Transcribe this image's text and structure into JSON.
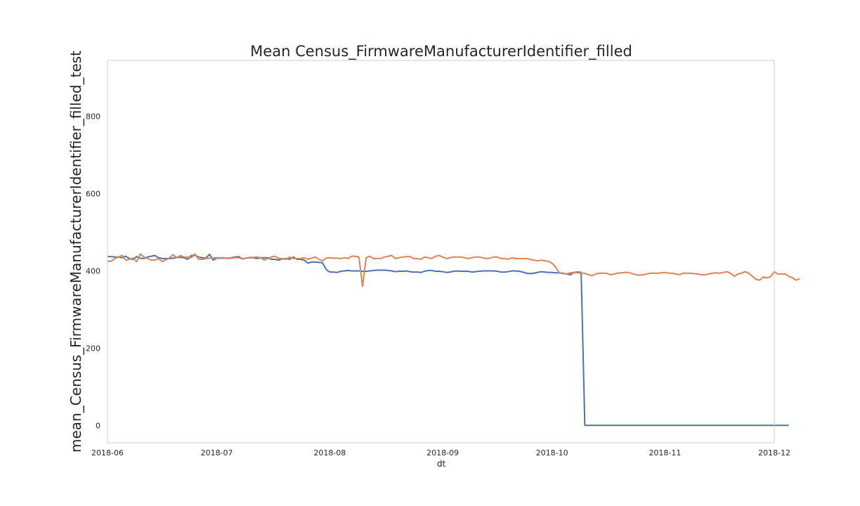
{
  "chart_data": {
    "type": "line",
    "title": "Mean Census_FirmwareManufacturerIdentifier_filled",
    "xlabel": "dt",
    "ylabel": "mean_Census_FirmwareManufacturerIdentifier_filled_test",
    "x_ticks": [
      "2018-06",
      "2018-07",
      "2018-08",
      "2018-09",
      "2018-10",
      "2018-11",
      "2018-12"
    ],
    "y_ticks": [
      0,
      200,
      400,
      600,
      800
    ],
    "xlim": [
      "2018-06-01",
      "2018-12-01"
    ],
    "ylim": [
      -45,
      945
    ],
    "grid": false,
    "series": [
      {
        "color": "#4c72b0",
        "x_start": "2018-06-01",
        "x_step_days": 1,
        "values": [
          437,
          437,
          436,
          436,
          434,
          438,
          432,
          430,
          437,
          433,
          432,
          436,
          438,
          440,
          434,
          432,
          432,
          432,
          433,
          435,
          435,
          434,
          430,
          440,
          440,
          436,
          434,
          433,
          443,
          428,
          433,
          433,
          433,
          433,
          434,
          436,
          437,
          431,
          433,
          434,
          434,
          432,
          434,
          434,
          434,
          430,
          430,
          428,
          431,
          432,
          430,
          436,
          430,
          430,
          428,
          420,
          423,
          423,
          422,
          421,
          404,
          397,
          397,
          396,
          399,
          400,
          401,
          400,
          400,
          400,
          399,
          399,
          400,
          401,
          402,
          402,
          402,
          401,
          400,
          398,
          399,
          399,
          400,
          398,
          397,
          397,
          396,
          399,
          401,
          401,
          399,
          399,
          398,
          396,
          397,
          399,
          400,
          399,
          399,
          399,
          397,
          398,
          399,
          400,
          400,
          400,
          400,
          399,
          397,
          397,
          398,
          400,
          400,
          399,
          397,
          394,
          393,
          394,
          396,
          398,
          397,
          396,
          396,
          395,
          395,
          394,
          392,
          390,
          396,
          397,
          396,
          0,
          0,
          0,
          0,
          0,
          0,
          0,
          0,
          0,
          0,
          0,
          0,
          0,
          0,
          0,
          0,
          0,
          0,
          0,
          0,
          0,
          0,
          0,
          0,
          0,
          0,
          0,
          0,
          0,
          0,
          0,
          0,
          0,
          0,
          0,
          0,
          0,
          0,
          0,
          0,
          0,
          0,
          0,
          0,
          0,
          0,
          0,
          0,
          0,
          0,
          0,
          0,
          0,
          0,
          0,
          0,
          0
        ]
      },
      {
        "color": "#dd8452",
        "x_start": "2018-06-01",
        "x_step_days": 1,
        "values": [
          425,
          425,
          432,
          436,
          440,
          428,
          430,
          433,
          424,
          444,
          436,
          432,
          428,
          428,
          432,
          424,
          428,
          434,
          442,
          434,
          440,
          436,
          436,
          434,
          444,
          430,
          430,
          432,
          433,
          434,
          434,
          434,
          434,
          432,
          433,
          434,
          434,
          432,
          433,
          435,
          435,
          436,
          434,
          428,
          432,
          436,
          438,
          432,
          432,
          430,
          436,
          432,
          432,
          432,
          434,
          430,
          433,
          436,
          430,
          426,
          433,
          434,
          433,
          433,
          432,
          434,
          432,
          438,
          438,
          436,
          360,
          434,
          438,
          432,
          432,
          432,
          436,
          438,
          440,
          432,
          434,
          436,
          437,
          437,
          432,
          432,
          430,
          436,
          434,
          432,
          438,
          440,
          436,
          432,
          434,
          436,
          436,
          436,
          434,
          432,
          434,
          436,
          436,
          434,
          432,
          433,
          436,
          436,
          432,
          432,
          430,
          434,
          432,
          432,
          432,
          432,
          430,
          428,
          426,
          428,
          426,
          425,
          420,
          410,
          395,
          393,
          392,
          395,
          396,
          395,
          394,
          394,
          390,
          388,
          392,
          394,
          394,
          394,
          390,
          392,
          394,
          395,
          396,
          396,
          393,
          390,
          389,
          390,
          392,
          394,
          394,
          394,
          395,
          396,
          394,
          394,
          392,
          390,
          394,
          394,
          394,
          393,
          392,
          390,
          390,
          392,
          394,
          395,
          394,
          396,
          398,
          394,
          386,
          392,
          394,
          398,
          394,
          386,
          378,
          376,
          384,
          382,
          385,
          398,
          392,
          392,
          392,
          386,
          382,
          376,
          380
        ]
      }
    ]
  }
}
